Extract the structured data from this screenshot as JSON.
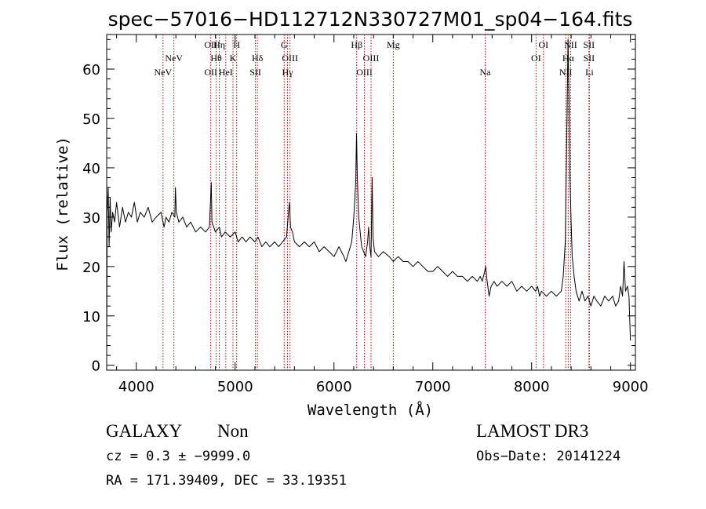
{
  "chart_data": {
    "type": "line",
    "title": "spec−57016−HD112712N330727M01_sp04−164.fits",
    "xlabel": "Wavelength (Å)",
    "ylabel": "Flux (relative)",
    "xlim": [
      3700,
      9050
    ],
    "ylim": [
      -1,
      67
    ],
    "x_ticks": [
      4000,
      5000,
      6000,
      7000,
      8000,
      9000
    ],
    "y_ticks": [
      0,
      10,
      20,
      30,
      40,
      50,
      60
    ],
    "series": [
      {
        "name": "spectrum",
        "color": "#000000",
        "points": [
          [
            3700,
            2
          ],
          [
            3705,
            31
          ],
          [
            3715,
            36
          ],
          [
            3725,
            24
          ],
          [
            3735,
            34
          ],
          [
            3745,
            27
          ],
          [
            3760,
            31
          ],
          [
            3780,
            29
          ],
          [
            3800,
            33
          ],
          [
            3830,
            28
          ],
          [
            3860,
            32
          ],
          [
            3890,
            29
          ],
          [
            3920,
            31
          ],
          [
            3950,
            30
          ],
          [
            3980,
            33
          ],
          [
            4010,
            29
          ],
          [
            4040,
            31
          ],
          [
            4080,
            30
          ],
          [
            4120,
            32
          ],
          [
            4160,
            29
          ],
          [
            4200,
            30
          ],
          [
            4250,
            31
          ],
          [
            4280,
            28
          ],
          [
            4300,
            30
          ],
          [
            4330,
            29
          ],
          [
            4360,
            31
          ],
          [
            4390,
            30
          ],
          [
            4395,
            36
          ],
          [
            4405,
            31
          ],
          [
            4430,
            29
          ],
          [
            4470,
            30
          ],
          [
            4510,
            28
          ],
          [
            4550,
            29
          ],
          [
            4600,
            27
          ],
          [
            4650,
            28
          ],
          [
            4700,
            27
          ],
          [
            4740,
            28
          ],
          [
            4758,
            37
          ],
          [
            4765,
            29
          ],
          [
            4800,
            27
          ],
          [
            4840,
            28
          ],
          [
            4861,
            26
          ],
          [
            4900,
            27
          ],
          [
            4950,
            26
          ],
          [
            5000,
            27
          ],
          [
            5030,
            25
          ],
          [
            5070,
            26
          ],
          [
            5110,
            25
          ],
          [
            5150,
            26
          ],
          [
            5200,
            25
          ],
          [
            5230,
            26
          ],
          [
            5270,
            24
          ],
          [
            5310,
            25
          ],
          [
            5350,
            24
          ],
          [
            5400,
            25
          ],
          [
            5440,
            24
          ],
          [
            5480,
            25
          ],
          [
            5520,
            26
          ],
          [
            5540,
            31
          ],
          [
            5550,
            33
          ],
          [
            5560,
            28
          ],
          [
            5580,
            27
          ],
          [
            5600,
            25
          ],
          [
            5650,
            24
          ],
          [
            5700,
            25
          ],
          [
            5750,
            24
          ],
          [
            5800,
            25
          ],
          [
            5850,
            23
          ],
          [
            5900,
            24
          ],
          [
            5950,
            23
          ],
          [
            6000,
            22
          ],
          [
            6050,
            24
          ],
          [
            6100,
            22
          ],
          [
            6120,
            21
          ],
          [
            6150,
            23
          ],
          [
            6180,
            25
          ],
          [
            6200,
            30
          ],
          [
            6220,
            37
          ],
          [
            6228,
            47
          ],
          [
            6236,
            38
          ],
          [
            6250,
            30
          ],
          [
            6280,
            24
          ],
          [
            6320,
            22
          ],
          [
            6340,
            25
          ],
          [
            6350,
            28
          ],
          [
            6362,
            24
          ],
          [
            6375,
            22
          ],
          [
            6386,
            38
          ],
          [
            6395,
            26
          ],
          [
            6410,
            23
          ],
          [
            6450,
            22
          ],
          [
            6500,
            23
          ],
          [
            6560,
            22
          ],
          [
            6600,
            21
          ],
          [
            6650,
            22
          ],
          [
            6700,
            21
          ],
          [
            6750,
            21
          ],
          [
            6800,
            20
          ],
          [
            6850,
            21
          ],
          [
            6900,
            20
          ],
          [
            6950,
            19
          ],
          [
            7000,
            19
          ],
          [
            7050,
            20
          ],
          [
            7100,
            19
          ],
          [
            7150,
            18
          ],
          [
            7200,
            19
          ],
          [
            7250,
            18
          ],
          [
            7300,
            18
          ],
          [
            7350,
            17
          ],
          [
            7400,
            18
          ],
          [
            7450,
            17
          ],
          [
            7480,
            18
          ],
          [
            7500,
            17
          ],
          [
            7525,
            19
          ],
          [
            7535,
            20
          ],
          [
            7550,
            17
          ],
          [
            7570,
            14
          ],
          [
            7590,
            16
          ],
          [
            7620,
            17
          ],
          [
            7650,
            16
          ],
          [
            7700,
            17
          ],
          [
            7750,
            16
          ],
          [
            7800,
            17
          ],
          [
            7850,
            15
          ],
          [
            7900,
            16
          ],
          [
            7950,
            15
          ],
          [
            8000,
            16
          ],
          [
            8040,
            15
          ],
          [
            8060,
            16
          ],
          [
            8080,
            14
          ],
          [
            8100,
            15
          ],
          [
            8150,
            14
          ],
          [
            8200,
            15
          ],
          [
            8250,
            14
          ],
          [
            8300,
            15
          ],
          [
            8320,
            18
          ],
          [
            8340,
            25
          ],
          [
            8355,
            45
          ],
          [
            8368,
            66
          ],
          [
            8378,
            55
          ],
          [
            8388,
            38
          ],
          [
            8398,
            30
          ],
          [
            8410,
            22
          ],
          [
            8430,
            18
          ],
          [
            8450,
            15
          ],
          [
            8480,
            13
          ],
          [
            8510,
            15
          ],
          [
            8540,
            13
          ],
          [
            8570,
            14
          ],
          [
            8600,
            12
          ],
          [
            8630,
            14
          ],
          [
            8660,
            13
          ],
          [
            8700,
            12
          ],
          [
            8740,
            14
          ],
          [
            8780,
            13
          ],
          [
            8820,
            14
          ],
          [
            8850,
            12
          ],
          [
            8880,
            13
          ],
          [
            8900,
            16
          ],
          [
            8920,
            14
          ],
          [
            8935,
            21
          ],
          [
            8950,
            15
          ],
          [
            8970,
            16
          ],
          [
            8985,
            14
          ],
          [
            9000,
            5
          ]
        ]
      }
    ],
    "line_marker_color": "#cc0000",
    "lines": [
      {
        "label": "NeV",
        "x": 4270,
        "row": 3
      },
      {
        "label": "NeV",
        "x": 4380,
        "row": 2
      },
      {
        "label": "OII",
        "x": 4753,
        "row": 1
      },
      {
        "label": "OII",
        "x": 4753,
        "row": 3
      },
      {
        "label": "Hη",
        "x": 4840,
        "row": 1
      },
      {
        "label": "Hθ",
        "x": 4808,
        "row": 2
      },
      {
        "label": "HeI",
        "x": 4905,
        "row": 3
      },
      {
        "label": "H",
        "x": 5015,
        "row": 1
      },
      {
        "label": "K",
        "x": 4978,
        "row": 2
      },
      {
        "label": "Hδ",
        "x": 5225,
        "row": 2
      },
      {
        "label": "SII",
        "x": 5205,
        "row": 3
      },
      {
        "label": "G",
        "x": 5496,
        "row": 1
      },
      {
        "label": "OIII",
        "x": 5555,
        "row": 2
      },
      {
        "label": "Hγ",
        "x": 5530,
        "row": 3
      },
      {
        "label": "Hβ",
        "x": 6230,
        "row": 1
      },
      {
        "label": "OIII",
        "x": 6375,
        "row": 2
      },
      {
        "label": "OIII",
        "x": 6308,
        "row": 3
      },
      {
        "label": "Mg",
        "x": 6600,
        "row": 1
      },
      {
        "label": "Na",
        "x": 7530,
        "row": 3
      },
      {
        "label": "OI",
        "x": 8120,
        "row": 1
      },
      {
        "label": "OI",
        "x": 8045,
        "row": 2
      },
      {
        "label": "NII",
        "x": 8395,
        "row": 1
      },
      {
        "label": "Hα",
        "x": 8370,
        "row": 2
      },
      {
        "label": "NII",
        "x": 8345,
        "row": 3
      },
      {
        "label": "SII",
        "x": 8580,
        "row": 1
      },
      {
        "label": "SII",
        "x": 8580,
        "row": 2
      },
      {
        "label": "Li",
        "x": 8585,
        "row": 3
      }
    ]
  },
  "info": {
    "class": "GALAXY",
    "subclass": "Non",
    "cz": "cz = 0.3 ± −9999.0",
    "radec": "RA = 171.39409, DEC =  33.19351",
    "survey": "LAMOST DR3",
    "obsdate": "Obs−Date: 20141224"
  }
}
